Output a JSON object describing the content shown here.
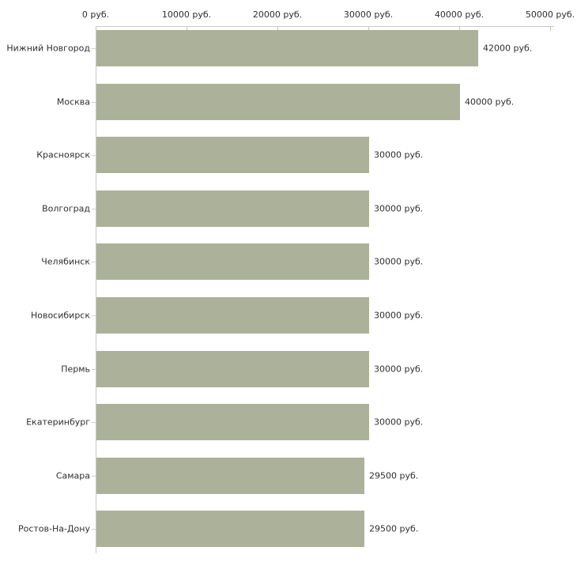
{
  "chart_data": {
    "type": "bar",
    "orientation": "horizontal",
    "title": "",
    "xlabel": "",
    "ylabel": "",
    "xlim": [
      0,
      50000
    ],
    "grid": false,
    "legend_position": "none",
    "x_tick_values": [
      0,
      10000,
      20000,
      30000,
      40000,
      50000
    ],
    "x_tick_labels": [
      "0 руб.",
      "10000 руб.",
      "20000 руб.",
      "30000 руб.",
      "40000 руб.",
      "50000 руб."
    ],
    "categories": [
      "Нижний Новгород",
      "Москва",
      "Красноярск",
      "Волгоград",
      "Челябинск",
      "Новосибирск",
      "Пермь",
      "Екатеринбург",
      "Самара",
      "Ростов-На-Дону"
    ],
    "values": [
      42000,
      40000,
      30000,
      30000,
      30000,
      30000,
      30000,
      30000,
      29500,
      29500
    ],
    "value_labels": [
      "42000 руб.",
      "40000 руб.",
      "30000 руб.",
      "30000 руб.",
      "30000 руб.",
      "30000 руб.",
      "30000 руб.",
      "30000 руб.",
      "29500 руб.",
      "29500 руб."
    ],
    "bar_color": "#acb299",
    "axis_color": "#c9c9c9",
    "x_tick_color": "#c6c6a4",
    "category_tick_color": "#d2d2bc",
    "text_color": "#2f2f2f",
    "background_color": "#ffffff"
  }
}
